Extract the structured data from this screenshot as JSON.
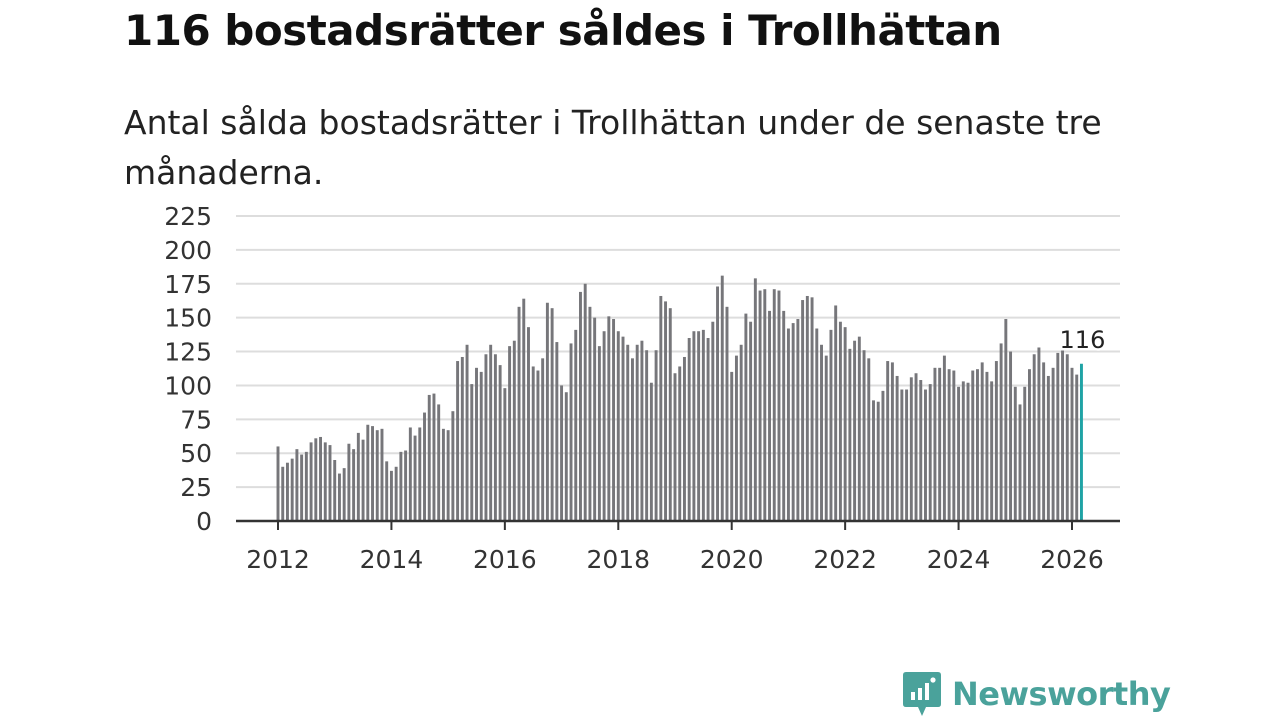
{
  "title": "116 bostadsrätter såldes i Trollhättan",
  "subtitle": "Antal sålda bostadsrätter i Trollhättan under de senaste tre månaderna.",
  "brand": {
    "name": "Newsworthy",
    "icon": "newsworthy-logo-icon"
  },
  "colors": {
    "bar": "#76767a",
    "highlight": "#1fa3a5",
    "grid": "#dddddd",
    "axis": "#333333",
    "brand": "#4aa29b"
  },
  "chart_data": {
    "type": "bar",
    "title": "116 bostadsrätter såldes i Trollhättan",
    "xlabel": "",
    "ylabel": "",
    "ylim": [
      0,
      225
    ],
    "yticks": [
      0,
      25,
      50,
      75,
      100,
      125,
      150,
      175,
      200,
      225
    ],
    "xticks": [
      "2012",
      "2014",
      "2016",
      "2018",
      "2020",
      "2022",
      "2024",
      "2026"
    ],
    "grid": true,
    "start": "2012-01",
    "end": "2026-03",
    "frequency": "monthly",
    "highlight_label": "116",
    "values": [
      55,
      40,
      43,
      46,
      53,
      49,
      51,
      58,
      61,
      62,
      58,
      56,
      45,
      35,
      39,
      57,
      53,
      65,
      60,
      71,
      70,
      67,
      68,
      44,
      37,
      40,
      51,
      52,
      69,
      63,
      69,
      80,
      93,
      94,
      86,
      68,
      67,
      81,
      118,
      121,
      130,
      101,
      113,
      110,
      123,
      130,
      123,
      115,
      98,
      129,
      133,
      158,
      164,
      143,
      114,
      111,
      120,
      161,
      157,
      132,
      100,
      95,
      131,
      141,
      169,
      175,
      158,
      150,
      129,
      140,
      151,
      149,
      140,
      136,
      130,
      120,
      130,
      133,
      126,
      102,
      126,
      166,
      162,
      157,
      109,
      114,
      121,
      135,
      140,
      140,
      141,
      135,
      147,
      173,
      181,
      158,
      110,
      122,
      130,
      153,
      147,
      179,
      170,
      171,
      155,
      171,
      170,
      155,
      142,
      146,
      149,
      163,
      166,
      165,
      142,
      130,
      122,
      141,
      159,
      147,
      143,
      127,
      133,
      136,
      126,
      120,
      89,
      88,
      96,
      118,
      117,
      107,
      97,
      97,
      106,
      109,
      104,
      97,
      101,
      113,
      113,
      122,
      112,
      111,
      99,
      103,
      102,
      111,
      112,
      117,
      110,
      103,
      118,
      131,
      149,
      125,
      99,
      86,
      99,
      112,
      123,
      128,
      117,
      107,
      113,
      124,
      126,
      123,
      113,
      108,
      116
    ]
  }
}
